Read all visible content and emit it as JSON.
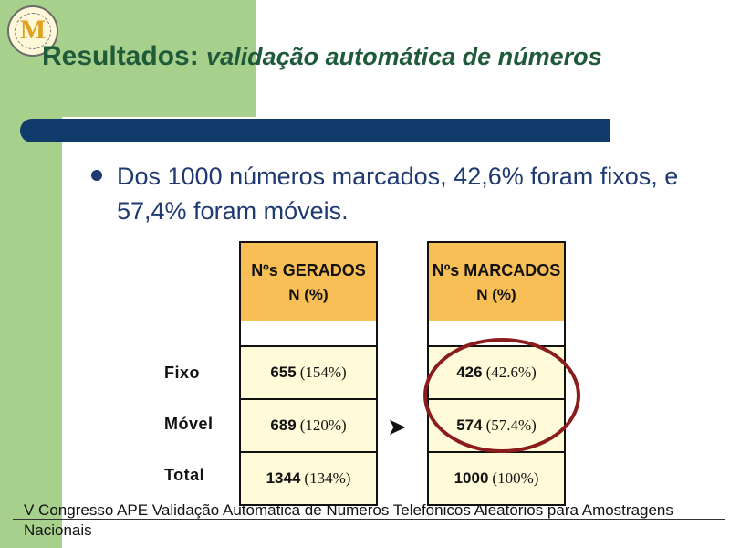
{
  "header": {
    "title_main": "Resultados:",
    "title_italic": "validação automática de números"
  },
  "bullet": {
    "text": "Dos 1000 números marcados, 42,6% foram fixos, e 57,4% foram móveis."
  },
  "table": {
    "row_labels": [
      "Fixo",
      "Móvel",
      "Total"
    ],
    "columns": [
      {
        "header_line1": "Nºs GERADOS",
        "header_line2": "N (%)",
        "cells": [
          {
            "value": "655",
            "pct": "(154%)"
          },
          {
            "value": "689",
            "pct": "(120%)"
          },
          {
            "value": "1344",
            "pct": "(134%)"
          }
        ]
      },
      {
        "header_line1": "Nºs MARCADOS",
        "header_line2": "N (%)",
        "cells": [
          {
            "value": "426",
            "pct": "(42.6%)"
          },
          {
            "value": "574",
            "pct": "(57.4%)"
          },
          {
            "value": "1000",
            "pct": "(100%)"
          }
        ]
      }
    ],
    "arrow_glyph": "➤"
  },
  "footer": {
    "text": "V Congresso APE     Validação Automática de Números Telefónicos Aleatórios para Amostragens Nacionais"
  },
  "colors": {
    "band_green": "#a8d08d",
    "title_green": "#1f5a3a",
    "bar_navy": "#0f3a6a",
    "header_orange": "#f7bf55",
    "cell_cream": "#fffbd8",
    "highlight_red": "#8b1c1c"
  }
}
